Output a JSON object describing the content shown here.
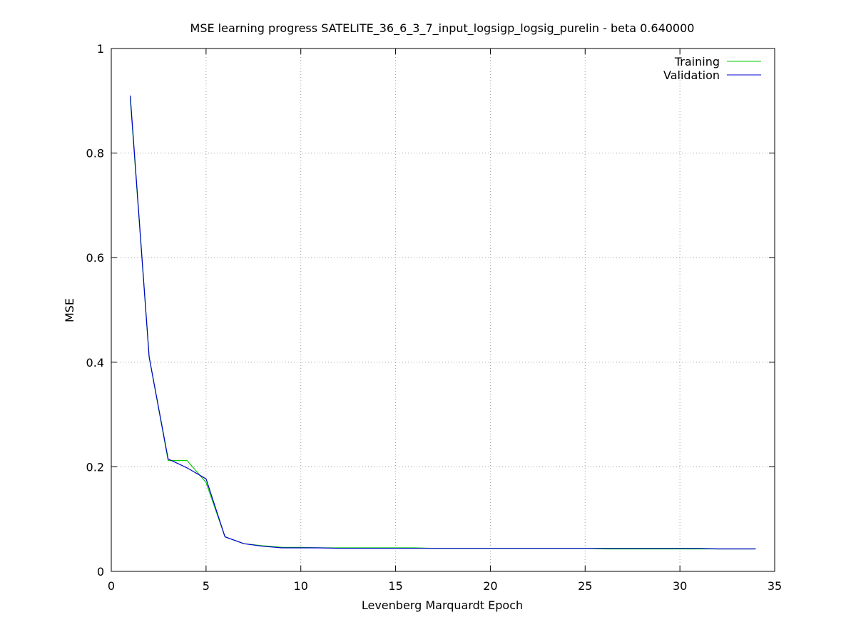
{
  "chart_data": {
    "type": "line",
    "title": "MSE learning progress SATELITE_36_6_3_7_input_logsigp_logsig_purelin -  beta 0.640000",
    "xlabel": "Levenberg Marquardt Epoch",
    "ylabel": "MSE",
    "xlim": [
      0,
      35
    ],
    "ylim": [
      0,
      1
    ],
    "xticks": [
      0,
      5,
      10,
      15,
      20,
      25,
      30,
      35
    ],
    "yticks": [
      0,
      0.2,
      0.4,
      0.6,
      0.8,
      1
    ],
    "xtick_labels": [
      "0",
      "5",
      "10",
      "15",
      "20",
      "25",
      "30",
      "35"
    ],
    "ytick_labels": [
      "0",
      "0.2",
      "0.4",
      "0.6",
      "0.8",
      "1"
    ],
    "grid": true,
    "legend_position": "top-right",
    "x": [
      1,
      2,
      3,
      4,
      5,
      6,
      7,
      8,
      9,
      10,
      11,
      12,
      13,
      14,
      15,
      16,
      17,
      18,
      19,
      20,
      21,
      22,
      23,
      24,
      25,
      26,
      27,
      28,
      29,
      30,
      31,
      32,
      33,
      34
    ],
    "series": [
      {
        "name": "Training",
        "color": "#00cc00",
        "values": [
          0.905,
          0.41,
          0.212,
          0.212,
          0.17,
          0.066,
          0.053,
          0.049,
          0.046,
          0.046,
          0.045,
          0.045,
          0.045,
          0.045,
          0.045,
          0.045,
          0.044,
          0.044,
          0.044,
          0.044,
          0.044,
          0.044,
          0.044,
          0.044,
          0.044,
          0.043,
          0.043,
          0.043,
          0.043,
          0.043,
          0.043,
          0.043,
          0.043,
          0.043
        ]
      },
      {
        "name": "Validation",
        "color": "#0000cc",
        "values": [
          0.91,
          0.41,
          0.215,
          0.198,
          0.177,
          0.066,
          0.053,
          0.048,
          0.045,
          0.045,
          0.045,
          0.044,
          0.044,
          0.044,
          0.044,
          0.044,
          0.044,
          0.044,
          0.044,
          0.044,
          0.044,
          0.044,
          0.044,
          0.044,
          0.044,
          0.044,
          0.044,
          0.044,
          0.044,
          0.044,
          0.044,
          0.043,
          0.043,
          0.043
        ]
      }
    ]
  }
}
